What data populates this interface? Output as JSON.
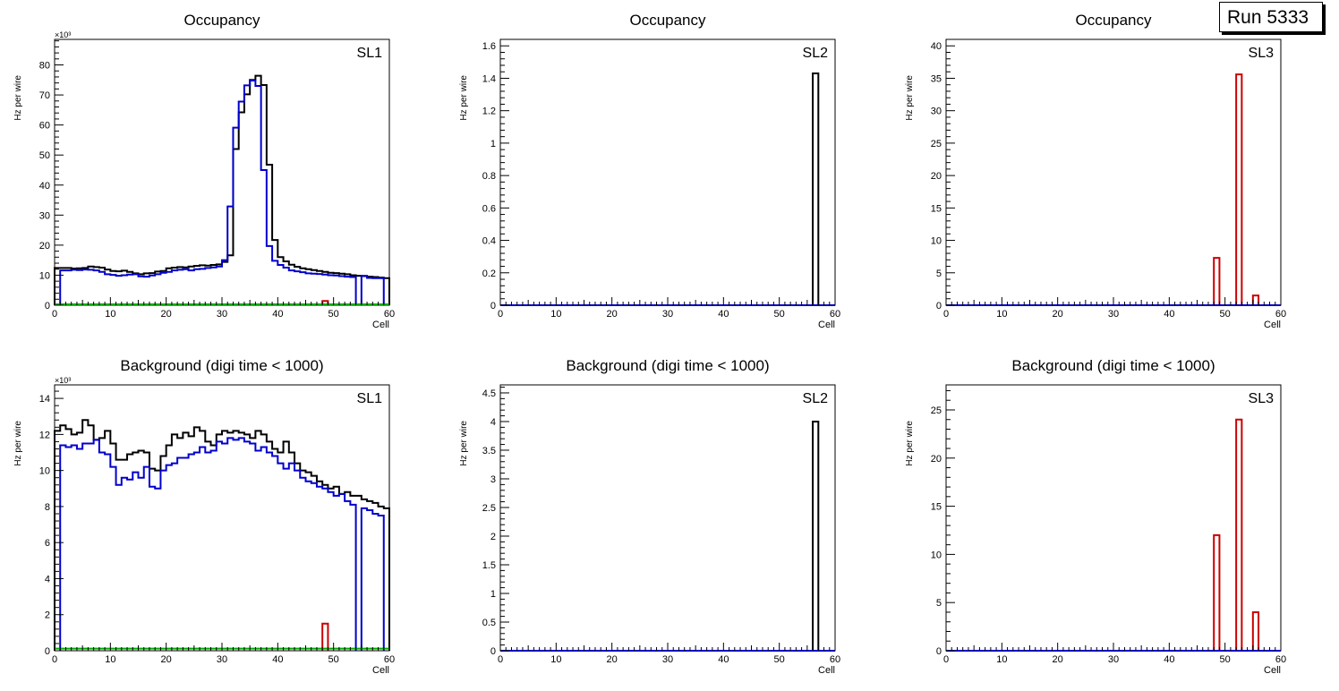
{
  "run_label": "Run 5333",
  "colors": {
    "total": "#000000",
    "blue": "#0000cc",
    "red": "#cc0000",
    "green": "#00aa00",
    "axis": "#000000"
  },
  "chart_data": [
    {
      "type": "histogram",
      "row": 0,
      "col": 0,
      "title": "Occupancy",
      "label": "SL1",
      "xlabel": "Cell",
      "ylabel": "Hz per wire",
      "exponent": "×10³",
      "xlim": [
        0,
        60
      ],
      "ylim": [
        0,
        88.5
      ],
      "xticks": [
        0,
        10,
        20,
        30,
        40,
        50,
        60
      ],
      "yticks": [
        0,
        10,
        20,
        30,
        40,
        50,
        60,
        70,
        80
      ],
      "series": [
        {
          "name": "all",
          "color": "black",
          "bins": [
            [
              0,
              60,
              [
                12.4,
                12.4,
                12.4,
                12.2,
                12.3,
                12.4,
                12.9,
                12.7,
                12.5,
                11.9,
                11.4,
                11.3,
                11.5,
                11.1,
                10.6,
                10.3,
                10.6,
                10.7,
                11.2,
                11.4,
                12.3,
                12.5,
                12.7,
                12.6,
                12.9,
                13.1,
                13.3,
                13.2,
                13.4,
                13.6,
                14.4,
                16.6,
                52.0,
                64.2,
                70.2,
                75.0,
                76.4,
                73.3,
                46.8,
                21.7,
                16.0,
                14.6,
                13.5,
                12.8,
                12.3,
                12.0,
                11.7,
                11.4,
                11.1,
                10.8,
                10.7,
                10.5,
                10.3,
                10.0,
                9.8,
                9.7,
                9.5,
                9.4,
                9.2,
                9.0
              ]
            ]
          ]
        },
        {
          "name": "blue",
          "color": "blue",
          "bins": [
            [
              1,
              54,
              [
                11.6,
                11.6,
                11.8,
                11.7,
                11.9,
                11.8,
                11.6,
                11.1,
                10.3,
                10.1,
                9.8,
                10.0,
                10.2,
                10.3,
                9.6,
                9.5,
                9.9,
                10.3,
                10.8,
                11.1,
                11.6,
                11.8,
                12.0,
                11.6,
                12.0,
                12.1,
                12.4,
                12.6,
                12.9,
                15.0,
                32.9,
                59.1,
                67.8,
                73.2,
                74.8,
                73.0,
                45.0,
                19.7,
                14.8,
                13.4,
                12.5,
                11.6,
                11.3,
                11.0,
                10.6,
                10.5,
                10.4,
                10.2,
                10.0,
                9.9,
                9.7,
                9.5,
                9.4
              ]
            ],
            [
              55,
              59,
              [
                9.8,
                9.1,
                9.0,
                9.0
              ]
            ]
          ]
        },
        {
          "name": "red",
          "color": "red",
          "bins": [
            [
              48,
              49,
              [
                1.4
              ]
            ]
          ]
        },
        {
          "name": "green",
          "color": "green",
          "baseline": 0.3
        }
      ]
    },
    {
      "type": "histogram",
      "row": 0,
      "col": 1,
      "title": "Occupancy",
      "label": "SL2",
      "xlabel": "Cell",
      "ylabel": "Hz per wire",
      "xlim": [
        0,
        60
      ],
      "ylim": [
        0,
        1.64
      ],
      "xticks": [
        0,
        10,
        20,
        30,
        40,
        50,
        60
      ],
      "yticks": [
        0,
        0.2,
        0.4,
        0.6,
        0.8,
        1,
        1.2,
        1.4,
        1.6
      ],
      "series": [
        {
          "name": "all",
          "color": "black",
          "bins": [
            [
              56,
              57,
              [
                1.43
              ]
            ]
          ]
        },
        {
          "name": "blue",
          "color": "blue",
          "baseline": 0
        }
      ]
    },
    {
      "type": "histogram",
      "row": 0,
      "col": 2,
      "title": "Occupancy",
      "label": "SL3",
      "xlabel": "Cell",
      "ylabel": "Hz per wire",
      "xlim": [
        0,
        60
      ],
      "ylim": [
        0,
        41
      ],
      "xticks": [
        0,
        10,
        20,
        30,
        40,
        50,
        60
      ],
      "yticks": [
        0,
        5,
        10,
        15,
        20,
        25,
        30,
        35,
        40
      ],
      "series": [
        {
          "name": "red",
          "color": "red",
          "bins": [
            [
              48,
              49,
              [
                7.3
              ]
            ],
            [
              52,
              53,
              [
                35.6
              ]
            ],
            [
              55,
              56,
              [
                1.5
              ]
            ]
          ]
        },
        {
          "name": "blue",
          "color": "blue",
          "baseline": 0
        }
      ]
    },
    {
      "type": "histogram",
      "row": 1,
      "col": 0,
      "title": "Background (digi time < 1000)",
      "label": "SL1",
      "xlabel": "Cell",
      "ylabel": "Hz per wire",
      "exponent": "×10³",
      "xlim": [
        0,
        60
      ],
      "ylim": [
        0,
        14.75
      ],
      "xticks": [
        0,
        10,
        20,
        30,
        40,
        50,
        60
      ],
      "yticks": [
        0,
        2,
        4,
        6,
        8,
        10,
        12,
        14
      ],
      "series": [
        {
          "name": "all",
          "color": "black",
          "bins": [
            [
              0,
              60,
              [
                12.2,
                12.5,
                12.3,
                12.0,
                12.1,
                12.8,
                12.5,
                11.7,
                11.8,
                12.2,
                11.5,
                10.6,
                10.6,
                10.9,
                11.0,
                11.1,
                11.0,
                10.1,
                10.0,
                10.8,
                11.4,
                12.0,
                11.8,
                12.1,
                11.9,
                12.4,
                12.2,
                11.6,
                11.4,
                12.0,
                12.2,
                12.1,
                12.2,
                12.1,
                12.0,
                11.8,
                12.2,
                12.0,
                11.6,
                11.2,
                11.0,
                11.6,
                11.0,
                10.4,
                10.0,
                9.9,
                9.7,
                9.4,
                9.2,
                9.0,
                9.1,
                8.7,
                8.8,
                8.6,
                8.6,
                8.4,
                8.3,
                8.2,
                8.0,
                7.9
              ]
            ]
          ]
        },
        {
          "name": "blue",
          "color": "blue",
          "bins": [
            [
              1,
              54,
              [
                11.4,
                11.3,
                11.4,
                11.2,
                11.5,
                11.5,
                11.7,
                11.0,
                10.9,
                10.2,
                9.2,
                9.6,
                9.5,
                9.9,
                9.6,
                10.2,
                9.1,
                9.0,
                10.0,
                10.3,
                10.4,
                10.7,
                10.7,
                10.9,
                11.0,
                11.3,
                11.0,
                11.1,
                11.6,
                11.5,
                11.8,
                11.7,
                11.8,
                11.6,
                11.5,
                11.1,
                11.3,
                11.0,
                10.8,
                10.4,
                10.1,
                10.4,
                10.0,
                9.6,
                9.4,
                9.3,
                9.1,
                9.0,
                8.8,
                8.6,
                8.7,
                8.3,
                8.1
              ]
            ],
            [
              55,
              59,
              [
                7.9,
                7.8,
                7.6,
                7.5
              ]
            ]
          ]
        },
        {
          "name": "red",
          "color": "red",
          "bins": [
            [
              48,
              49,
              [
                1.5
              ]
            ]
          ]
        },
        {
          "name": "green",
          "color": "green",
          "baseline": 0.12
        }
      ]
    },
    {
      "type": "histogram",
      "row": 1,
      "col": 1,
      "title": "Background (digi time < 1000)",
      "label": "SL2",
      "xlabel": "Cell",
      "ylabel": "Hz per wire",
      "xlim": [
        0,
        60
      ],
      "ylim": [
        0,
        4.64
      ],
      "xticks": [
        0,
        10,
        20,
        30,
        40,
        50,
        60
      ],
      "yticks": [
        0,
        0.5,
        1,
        1.5,
        2,
        2.5,
        3,
        3.5,
        4,
        4.5
      ],
      "series": [
        {
          "name": "all",
          "color": "black",
          "bins": [
            [
              56,
              57,
              [
                4.0
              ]
            ]
          ]
        },
        {
          "name": "blue",
          "color": "blue",
          "baseline": 0
        }
      ]
    },
    {
      "type": "histogram",
      "row": 1,
      "col": 2,
      "title": "Background (digi time < 1000)",
      "label": "SL3",
      "xlabel": "Cell",
      "ylabel": "Hz per wire",
      "xlim": [
        0,
        60
      ],
      "ylim": [
        0,
        27.6
      ],
      "xticks": [
        0,
        10,
        20,
        30,
        40,
        50,
        60
      ],
      "yticks": [
        0,
        5,
        10,
        15,
        20,
        25
      ],
      "series": [
        {
          "name": "red",
          "color": "red",
          "bins": [
            [
              48,
              49,
              [
                12.0
              ]
            ],
            [
              52,
              53,
              [
                24.0
              ]
            ],
            [
              55,
              56,
              [
                4.0
              ]
            ]
          ]
        },
        {
          "name": "blue",
          "color": "blue",
          "baseline": 0
        }
      ]
    }
  ]
}
